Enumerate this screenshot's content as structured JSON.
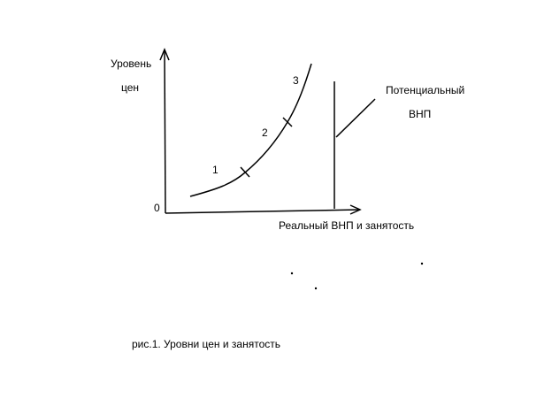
{
  "axes": {
    "y_label": [
      "Уровень",
      "цен"
    ],
    "origin": "0",
    "x_label": "Реальный ВНП и занятость"
  },
  "segments": [
    "1",
    "2",
    "3"
  ],
  "potential": {
    "label_lines": [
      "Потенциальный",
      "ВНП"
    ]
  },
  "caption": "рис.1. Уровни цен и занятость"
}
